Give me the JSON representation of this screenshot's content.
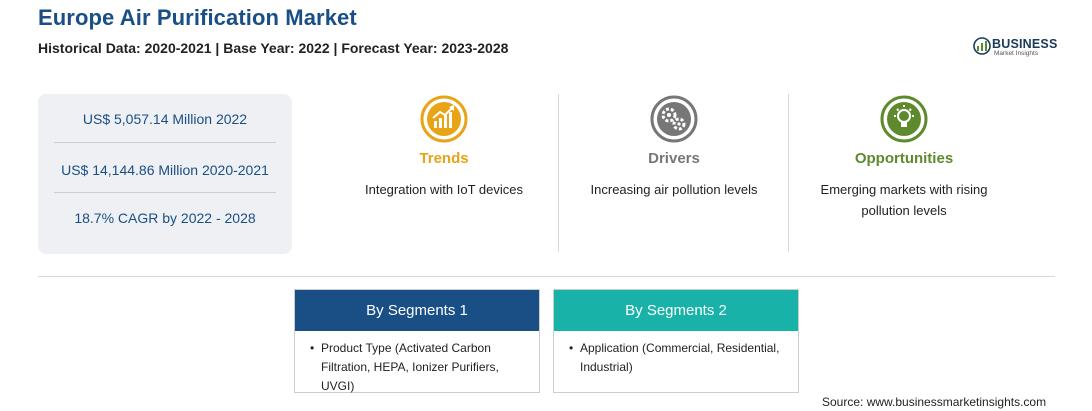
{
  "header": {
    "title": "Europe Air Purification Market",
    "subtitle": "Historical Data: 2020-2021 | Base Year: 2022 | Forecast Year: 2023-2028"
  },
  "logo": {
    "name": "BUSINESS",
    "tagline": "Market Insights",
    "icon": "globe-chart-logo",
    "color": "#1a3a5a"
  },
  "stats": [
    "US$ 5,057.14 Million 2022",
    "US$ 14,144.86 Million 2020-2021",
    "18.7% CAGR by 2022 - 2028"
  ],
  "highlights": [
    {
      "title": "Trends",
      "text": "Integration with IoT devices",
      "icon": "growth-chart-icon",
      "color": "#e8a317"
    },
    {
      "title": "Drivers",
      "text": "Increasing air pollution levels",
      "icon": "gears-icon",
      "color": "#777777"
    },
    {
      "title": "Opportunities",
      "text": "Emerging markets with rising pollution levels",
      "icon": "lightbulb-icon",
      "color": "#5e8a2e"
    }
  ],
  "segments": [
    {
      "title": "By Segments 1",
      "item": "Product Type (Activated Carbon Filtration, HEPA, Ionizer Purifiers, UVGI)",
      "color": "#1a4f86"
    },
    {
      "title": "By Segments 2",
      "item": "Application (Commercial, Residential, Industrial)",
      "color": "#18b2a8"
    }
  ],
  "source": "Source: www.businessmarketinsights.com"
}
